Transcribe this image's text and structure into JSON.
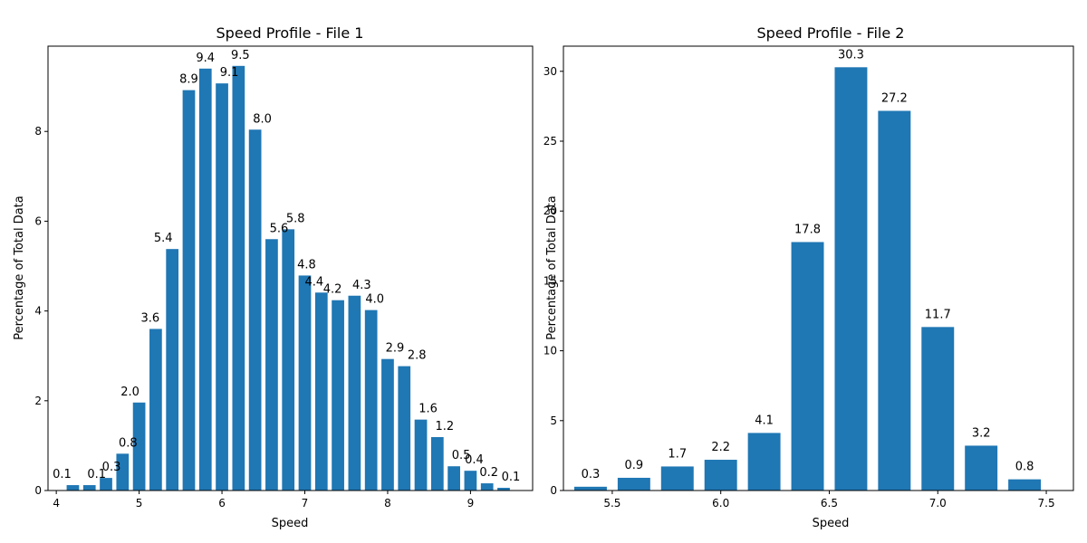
{
  "colors": {
    "bar": "#1f77b4",
    "axis": "#000000"
  },
  "chart_data": [
    {
      "type": "bar",
      "title": "Speed Profile - File 1",
      "xlabel": "Speed",
      "ylabel": "Percentage of Total Data",
      "xlim": [
        3.9,
        9.75
      ],
      "ylim": [
        0,
        9.9
      ],
      "xticks": [
        4,
        5,
        6,
        7,
        8,
        9
      ],
      "yticks": [
        0,
        2,
        4,
        6,
        8
      ],
      "bar_width": 0.15,
      "grid": false,
      "x": [
        4.2,
        4.4,
        4.6,
        4.8,
        5.0,
        5.2,
        5.4,
        5.6,
        5.8,
        6.0,
        6.2,
        6.4,
        6.6,
        6.8,
        7.0,
        7.2,
        7.4,
        7.6,
        7.8,
        8.0,
        8.2,
        8.4,
        8.6,
        8.8,
        9.0,
        9.2,
        9.4
      ],
      "values": [
        0.12,
        0.12,
        0.28,
        0.82,
        1.96,
        3.6,
        5.38,
        8.92,
        9.4,
        9.07,
        9.46,
        8.04,
        5.6,
        5.82,
        4.79,
        4.41,
        4.24,
        4.34,
        4.02,
        2.93,
        2.77,
        1.58,
        1.19,
        0.54,
        0.44,
        0.16,
        0.06
      ],
      "labels": [
        "0.1",
        "0.1",
        "0.3",
        "0.8",
        "2.0",
        "3.6",
        "5.4",
        "8.9",
        "9.4",
        "9.1",
        "9.5",
        "8.0",
        "5.6",
        "5.8",
        "4.8",
        "4.4",
        "4.2",
        "4.3",
        "4.0",
        "2.9",
        "2.8",
        "1.6",
        "1.2",
        "0.5",
        "0.4",
        "0.2",
        "0.1"
      ]
    },
    {
      "type": "bar",
      "title": "Speed Profile - File 2",
      "xlabel": "Speed",
      "ylabel": "Percentage of Total Data",
      "xlim": [
        5.275,
        7.625
      ],
      "ylim": [
        0,
        31.8
      ],
      "xticks": [
        5.5,
        6.0,
        6.5,
        7.0,
        7.5
      ],
      "xtick_labels": [
        "5.5",
        "6.0",
        "6.5",
        "7.0",
        "7.5"
      ],
      "yticks": [
        0,
        5,
        10,
        15,
        20,
        25,
        30
      ],
      "bar_width": 0.15,
      "grid": false,
      "x": [
        5.4,
        5.6,
        5.8,
        6.0,
        6.2,
        6.4,
        6.6,
        6.8,
        7.0,
        7.2,
        7.4
      ],
      "values": [
        0.27,
        0.91,
        1.72,
        2.2,
        4.12,
        17.78,
        30.29,
        27.17,
        11.7,
        3.21,
        0.8
      ],
      "labels": [
        "0.3",
        "0.9",
        "1.7",
        "2.2",
        "4.1",
        "17.8",
        "30.3",
        "27.2",
        "11.7",
        "3.2",
        "0.8"
      ]
    }
  ]
}
